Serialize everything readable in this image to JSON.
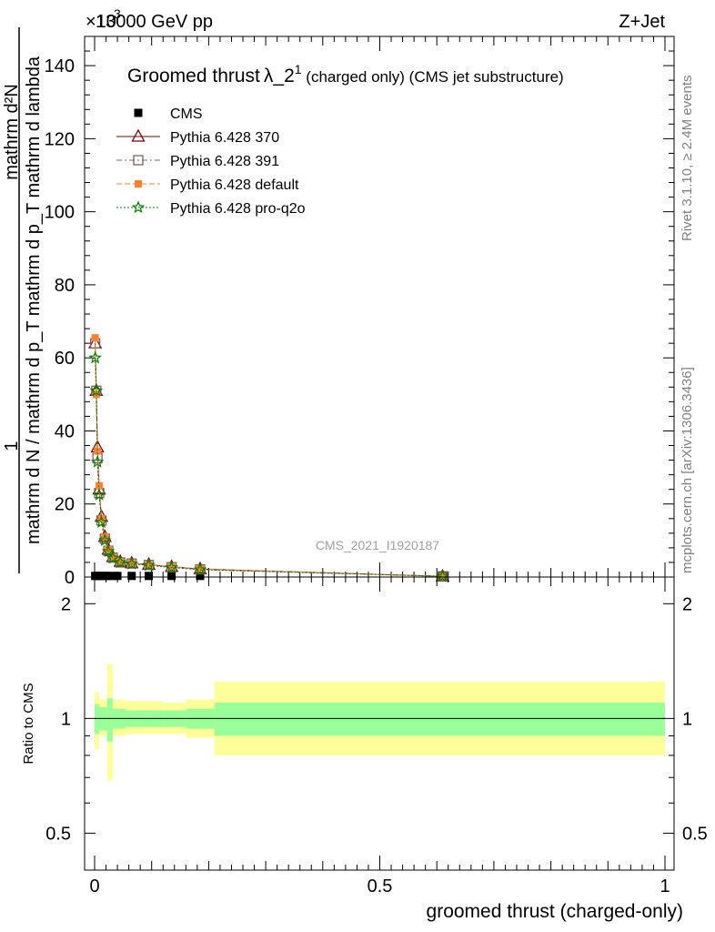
{
  "header": {
    "left": "13000 GeV pp",
    "right": "Z+Jet",
    "scale_prefix": "×10",
    "scale_exp": "3"
  },
  "side_labels": {
    "rivet": "Rivet 3.1.10, ≥ 2.4M events",
    "mcplots": "mcplots.cern.ch [arXiv:1306.3436]"
  },
  "watermark": "CMS_2021_I1920187",
  "chart_data": [
    {
      "type": "scatter",
      "title_main": "Groomed thrust",
      "title_lambda": "λ_2",
      "title_sup": "1",
      "title_suffix": " (charged only) (CMS jet substructure)",
      "ylabel": {
        "num": "1",
        "den_line1": "mathrm d N / mathrm d p",
        "den_sub1": "T",
        "den_line1b": " mathrm d p",
        "den_sub2": "T",
        "den_line1c": " mathrm d lambda",
        "full_den": "mathrm d N / mathrm d p_T mathrm d p_T mathrm d lambda",
        "top": "mathrm d²N",
        "num_top": "1"
      },
      "ylabel_text_right": "1",
      "ylabel_den": "mathrm d N / mathrm d p_T mathrm d p_T mathrm d lambda",
      "ylabel_top": "mathrm d²N",
      "xlim": [
        0,
        1
      ],
      "ylim": [
        0,
        148
      ],
      "yticks": [
        0,
        20,
        40,
        60,
        80,
        100,
        120,
        140
      ],
      "ytick_labels": [
        "0",
        "20",
        "40",
        "60",
        "80",
        "100",
        "120",
        "140"
      ],
      "series": [
        {
          "name": "CMS",
          "color": "#000000",
          "marker": "square",
          "x": [
            0.001,
            0.005,
            0.01,
            0.016,
            0.022,
            0.03,
            0.04,
            0.065,
            0.095,
            0.135,
            0.185,
            0.61
          ],
          "y": [
            0.3,
            0.3,
            0.3,
            0.3,
            0.3,
            0.3,
            0.3,
            0.3,
            0.3,
            0.3,
            0.3,
            0.3
          ]
        },
        {
          "name": "Pythia 6.428 370",
          "color": "#800000",
          "marker": "triangle",
          "x": [
            0.001,
            0.003,
            0.005,
            0.008,
            0.012,
            0.018,
            0.024,
            0.032,
            0.045,
            0.065,
            0.095,
            0.135,
            0.185,
            0.61
          ],
          "y": [
            64,
            51,
            35.5,
            24,
            16.5,
            11,
            7.5,
            5.5,
            4.2,
            3.8,
            3.4,
            2.8,
            2.2,
            0.2
          ]
        },
        {
          "name": "Pythia 6.428 391",
          "color": "#806060",
          "marker": "square-open",
          "x": [
            0.001,
            0.003,
            0.005,
            0.008,
            0.012,
            0.018,
            0.024,
            0.032,
            0.045,
            0.065,
            0.095,
            0.135,
            0.185,
            0.61
          ],
          "y": [
            64,
            51,
            32.5,
            23,
            15.5,
            10.5,
            7.2,
            5.3,
            4.0,
            3.7,
            3.3,
            2.7,
            2.1,
            0.2
          ]
        },
        {
          "name": "Pythia 6.428 default",
          "color": "#ff8030",
          "marker": "square-filled",
          "x": [
            0.001,
            0.003,
            0.005,
            0.008,
            0.012,
            0.018,
            0.024,
            0.032,
            0.045,
            0.065,
            0.095,
            0.135,
            0.185,
            0.61
          ],
          "y": [
            65.5,
            50,
            34.5,
            25,
            16,
            11,
            7.5,
            5.5,
            4.2,
            3.8,
            3.3,
            2.8,
            2.2,
            0.2
          ]
        },
        {
          "name": "Pythia 6.428 pro-q2o",
          "color": "#008000",
          "marker": "star",
          "x": [
            0.001,
            0.003,
            0.005,
            0.008,
            0.012,
            0.018,
            0.024,
            0.032,
            0.045,
            0.065,
            0.095,
            0.135,
            0.185,
            0.61
          ],
          "y": [
            60,
            51,
            31.5,
            22.5,
            15,
            10,
            7,
            5.2,
            4.0,
            3.6,
            3.2,
            2.6,
            2.0,
            0.2
          ]
        }
      ]
    },
    {
      "type": "area",
      "ylabel": "Ratio to CMS",
      "xlabel": "groomed thrust (charged-only)",
      "xlim": [
        0,
        1
      ],
      "ylim": [
        0.4,
        2.35
      ],
      "ylog": true,
      "xticks": [
        0,
        0.5,
        1
      ],
      "xtick_labels": [
        "0",
        "0.5",
        "1"
      ],
      "yticks": [
        0.5,
        1,
        2
      ],
      "ytick_labels": [
        "0.5",
        "1",
        "2"
      ],
      "reference": 1,
      "bins": [
        {
          "x0": 0.0,
          "x1": 0.008,
          "inner": [
            0.91,
            1.09
          ],
          "outer": [
            0.83,
            1.17
          ]
        },
        {
          "x0": 0.008,
          "x1": 0.022,
          "inner": [
            0.93,
            1.07
          ],
          "outer": [
            0.9,
            1.12
          ]
        },
        {
          "x0": 0.022,
          "x1": 0.032,
          "inner": [
            0.87,
            1.13
          ],
          "outer": [
            0.69,
            1.39
          ]
        },
        {
          "x0": 0.032,
          "x1": 0.054,
          "inner": [
            0.94,
            1.06
          ],
          "outer": [
            0.9,
            1.12
          ]
        },
        {
          "x0": 0.054,
          "x1": 0.12,
          "inner": [
            0.95,
            1.05
          ],
          "outer": [
            0.91,
            1.11
          ]
        },
        {
          "x0": 0.12,
          "x1": 0.16,
          "inner": [
            0.95,
            1.05
          ],
          "outer": [
            0.91,
            1.1
          ]
        },
        {
          "x0": 0.16,
          "x1": 0.21,
          "inner": [
            0.94,
            1.06
          ],
          "outer": [
            0.89,
            1.12
          ]
        },
        {
          "x0": 0.21,
          "x1": 1.0,
          "inner": [
            0.9,
            1.1
          ],
          "outer": [
            0.8,
            1.25
          ]
        }
      ],
      "colors": {
        "inner": "#99ff99",
        "outer": "#ffff99"
      }
    }
  ]
}
